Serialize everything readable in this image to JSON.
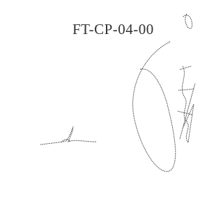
{
  "document": {
    "code": "FT-CP-04-00"
  }
}
